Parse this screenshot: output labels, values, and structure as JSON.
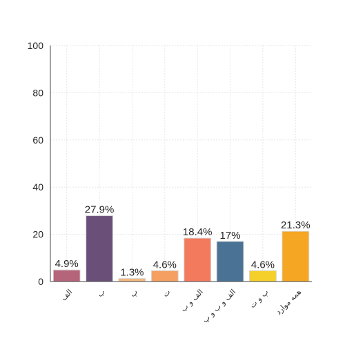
{
  "chart_data": {
    "type": "bar",
    "categories": [
      "الف",
      "ب",
      "پ",
      "ت",
      "الف و ب",
      "الف و ب و پ",
      "پ و ت",
      "همه موارد"
    ],
    "values": [
      4.9,
      27.9,
      1.3,
      4.6,
      18.4,
      17,
      4.6,
      21.3
    ],
    "value_labels": [
      "4.9%",
      "27.9%",
      "1.3%",
      "4.6%",
      "18.4%",
      "17%",
      "4.6%",
      "21.3%"
    ],
    "colors": [
      "#b5647a",
      "#6a5079",
      "#f3b87e",
      "#f5a062",
      "#f47a5e",
      "#4a7295",
      "#f5cf2a",
      "#f5a623"
    ],
    "ylim": [
      0,
      100
    ],
    "yticks": [
      "0",
      "20",
      "40",
      "60",
      "80",
      "100"
    ],
    "title": "",
    "xlabel": "",
    "ylabel": "",
    "grid": true,
    "legend": "none"
  }
}
